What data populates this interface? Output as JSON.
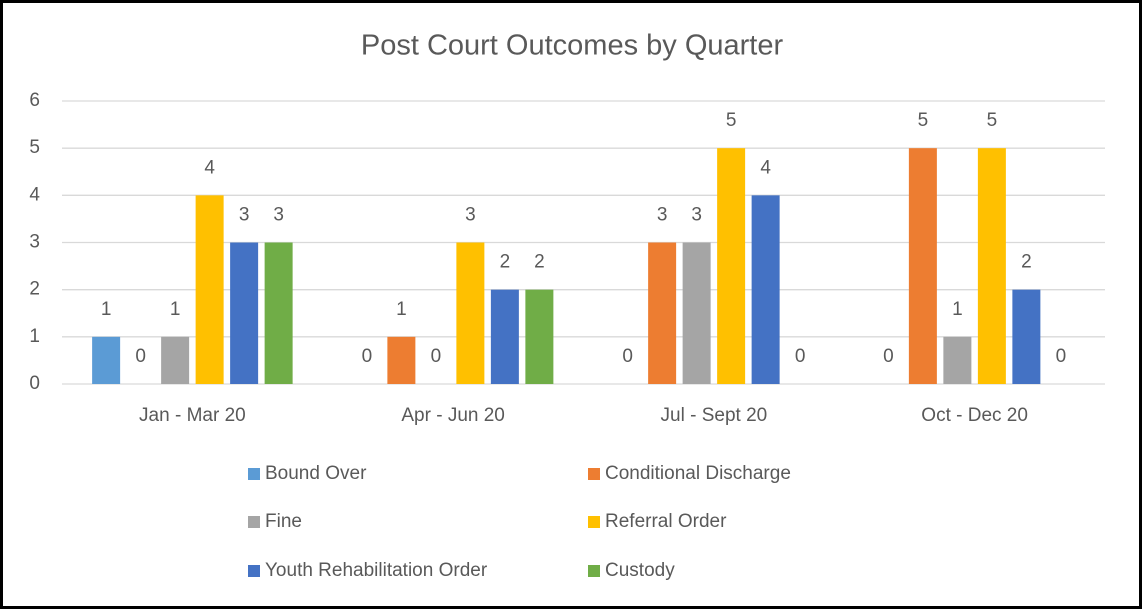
{
  "chart_data": {
    "type": "bar",
    "title": "Post Court Outcomes by Quarter",
    "categories": [
      "Jan - Mar 20",
      "Apr - Jun 20",
      "Jul - Sept 20",
      "Oct - Dec 20"
    ],
    "series": [
      {
        "name": "Bound Over",
        "color": "#5b9bd5",
        "values": [
          1,
          0,
          0,
          0
        ]
      },
      {
        "name": "Conditional Discharge",
        "color": "#ed7d31",
        "values": [
          0,
          1,
          3,
          5
        ]
      },
      {
        "name": "Fine",
        "color": "#a5a5a5",
        "values": [
          1,
          0,
          3,
          1
        ]
      },
      {
        "name": "Referral Order",
        "color": "#ffc000",
        "values": [
          4,
          3,
          5,
          5
        ]
      },
      {
        "name": "Youth Rehabilitation Order",
        "color": "#4472c4",
        "values": [
          3,
          2,
          4,
          2
        ]
      },
      {
        "name": "Custody",
        "color": "#70ad47",
        "values": [
          3,
          2,
          0,
          0
        ]
      }
    ],
    "ylim": [
      0,
      6
    ],
    "yticks": [
      0,
      1,
      2,
      3,
      4,
      5,
      6
    ],
    "grid": true,
    "legend": "bottom"
  }
}
